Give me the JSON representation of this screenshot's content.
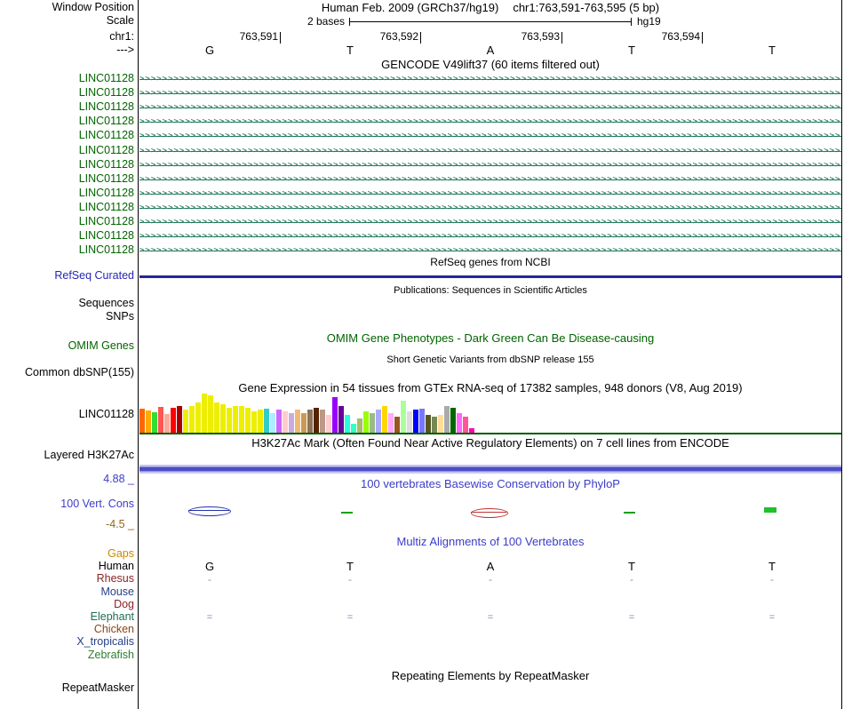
{
  "header": {
    "window_position_label": "Window Position",
    "title": "Human Feb. 2009 (GRCh37/hg19)",
    "position": "chr1:763,591-763,595 (5 bp)",
    "scale_label": "Scale",
    "scale_text": "2 bases",
    "assembly": "hg19",
    "chrom_label": "chr1:",
    "direction_label": "--->",
    "ruler_ticks": [
      "763,591",
      "763,592",
      "763,593",
      "763,594"
    ],
    "bases": [
      "G",
      "T",
      "A",
      "T",
      "T"
    ]
  },
  "tracks": {
    "gencode": {
      "title": "GENCODE V49lift37 (60 items filtered out)",
      "gene_label": "LINC01128",
      "row_count": 13,
      "arrow_char": ">",
      "color": "#0c6d4c",
      "label_color": "#006400"
    },
    "refseq": {
      "title": "RefSeq genes from NCBI",
      "label": "RefSeq Curated",
      "label_color": "#2626b5",
      "item_color": "#26269b"
    },
    "publications": {
      "title": "Publications: Sequences in Scientific Articles",
      "label_sequences": "Sequences",
      "label_snps": "SNPs"
    },
    "omim": {
      "title": "OMIM Gene Phenotypes - Dark Green Can Be Disease-causing",
      "label": "OMIM Genes",
      "color": "#006400"
    },
    "dbsnp": {
      "title": "Short Genetic Variants from dbSNP release 155",
      "label": "Common dbSNP(155)"
    },
    "gtex": {
      "title": "Gene Expression in 54 tissues from GTEx RNA-seq of 17382 samples, 948 donors (V8, Aug 2019)",
      "label": "LINC01128",
      "baseline_color": "#005c00",
      "bars": [
        {
          "h": 27,
          "c": "#FF6600"
        },
        {
          "h": 25,
          "c": "#FFAA00"
        },
        {
          "h": 23,
          "c": "#33DD33"
        },
        {
          "h": 29,
          "c": "#FF5555"
        },
        {
          "h": 21,
          "c": "#FFAA99"
        },
        {
          "h": 28,
          "c": "#FF0000"
        },
        {
          "h": 30,
          "c": "#AA0000"
        },
        {
          "h": 26,
          "c": "#EEEE00"
        },
        {
          "h": 30,
          "c": "#EEEE00"
        },
        {
          "h": 34,
          "c": "#EEEE00"
        },
        {
          "h": 44,
          "c": "#EEEE00"
        },
        {
          "h": 42,
          "c": "#EEEE00"
        },
        {
          "h": 34,
          "c": "#EEEE00"
        },
        {
          "h": 32,
          "c": "#EEEE00"
        },
        {
          "h": 28,
          "c": "#EEEE00"
        },
        {
          "h": 30,
          "c": "#EEEE00"
        },
        {
          "h": 30,
          "c": "#EEEE00"
        },
        {
          "h": 28,
          "c": "#EEEE00"
        },
        {
          "h": 24,
          "c": "#EEEE00"
        },
        {
          "h": 26,
          "c": "#EEEE00"
        },
        {
          "h": 27,
          "c": "#33CCCC"
        },
        {
          "h": 22,
          "c": "#AAEEFF"
        },
        {
          "h": 26,
          "c": "#CC66FF"
        },
        {
          "h": 24,
          "c": "#FFCCCC"
        },
        {
          "h": 22,
          "c": "#CCAADD"
        },
        {
          "h": 26,
          "c": "#EEBB77"
        },
        {
          "h": 22,
          "c": "#CC9955"
        },
        {
          "h": 26,
          "c": "#8B7355"
        },
        {
          "h": 28,
          "c": "#552200"
        },
        {
          "h": 26,
          "c": "#BB9988"
        },
        {
          "h": 20,
          "c": "#FFCCCC"
        },
        {
          "h": 40,
          "c": "#9900FF"
        },
        {
          "h": 30,
          "c": "#660099"
        },
        {
          "h": 20,
          "c": "#22FFDD"
        },
        {
          "h": 10,
          "c": "#33FFC2"
        },
        {
          "h": 16,
          "c": "#AABB66"
        },
        {
          "h": 24,
          "c": "#99FF00"
        },
        {
          "h": 22,
          "c": "#99BB88"
        },
        {
          "h": 26,
          "c": "#AAAAFF"
        },
        {
          "h": 30,
          "c": "#FFD700"
        },
        {
          "h": 22,
          "c": "#FFAAFF"
        },
        {
          "h": 18,
          "c": "#995522"
        },
        {
          "h": 36,
          "c": "#AAFF99"
        },
        {
          "h": 24,
          "c": "#DDDDDD"
        },
        {
          "h": 26,
          "c": "#0000FF"
        },
        {
          "h": 27,
          "c": "#7777FF"
        },
        {
          "h": 20,
          "c": "#555522"
        },
        {
          "h": 18,
          "c": "#778855"
        },
        {
          "h": 20,
          "c": "#FFDD99"
        },
        {
          "h": 30,
          "c": "#AAAAAA"
        },
        {
          "h": 28,
          "c": "#006600"
        },
        {
          "h": 22,
          "c": "#FF66FF"
        },
        {
          "h": 18,
          "c": "#FF5599"
        },
        {
          "h": 5,
          "c": "#FF00BB"
        }
      ]
    },
    "h3k27ac": {
      "title": "H3K27Ac Mark (Often Found Near Active Regulatory Elements) on 7 cell lines from ENCODE",
      "label": "Layered H3K27Ac"
    },
    "phylop": {
      "title": "100 vertebrates Basewise Conservation by PhyloP",
      "label": "100 Vert. Cons",
      "max": "4.88 _",
      "min": "-4.5 _",
      "label_color": "#3c3cc8",
      "min_color": "#99661a"
    },
    "multiz": {
      "title": "Multiz Alignments of 100 Vertebrates",
      "rows": [
        {
          "label": "Gaps",
          "color": "#cc8800",
          "cells": []
        },
        {
          "label": "Human",
          "color": "#000000",
          "cells": [
            "G",
            "T",
            "A",
            "T",
            "T"
          ],
          "cell_color": "#000000",
          "font": 13
        },
        {
          "label": "Rhesus",
          "color": "#8b2323",
          "cells": [
            "-",
            "-",
            "-",
            "-",
            "-"
          ],
          "cell_color": "#8890b8",
          "font": 12
        },
        {
          "label": "Mouse",
          "color": "#27408b",
          "cells": []
        },
        {
          "label": "Dog",
          "color": "#8b2323",
          "cells": []
        },
        {
          "label": "Elephant",
          "color": "#1c6e50",
          "cells": [
            "=",
            "=",
            "=",
            "=",
            "="
          ],
          "cell_color": "#7f8ab8",
          "font": 11
        },
        {
          "label": "Chicken",
          "color": "#8b4513",
          "cells": []
        },
        {
          "label": "X_tropicalis",
          "color": "#27408b",
          "cells": []
        },
        {
          "label": "Zebrafish",
          "color": "#2e7d32",
          "cells": []
        }
      ]
    },
    "repeatmasker": {
      "title": "Repeating Elements by RepeatMasker",
      "label": "RepeatMasker"
    }
  }
}
